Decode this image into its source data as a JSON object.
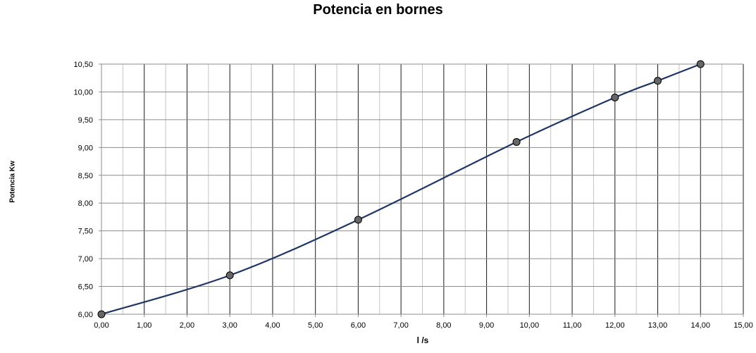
{
  "chart_data": {
    "type": "line",
    "title": "Potencia en bornes",
    "xlabel": "l /s",
    "ylabel": "Potencia Kw",
    "xlim": [
      0,
      15
    ],
    "ylim": [
      6,
      10.5
    ],
    "x_ticks": [
      "0,00",
      "1,00",
      "2,00",
      "3,00",
      "4,00",
      "5,00",
      "6,00",
      "7,00",
      "8,00",
      "9,00",
      "10,00",
      "11,00",
      "12,00",
      "13,00",
      "14,00",
      "15,00"
    ],
    "y_ticks": [
      "6,00",
      "6,50",
      "7,00",
      "7,50",
      "8,00",
      "8,50",
      "9,00",
      "9,50",
      "10,00",
      "10,50"
    ],
    "grid": true,
    "legend": "none",
    "series": [
      {
        "x": [
          0,
          3,
          6,
          9.7,
          12,
          13,
          14
        ],
        "y": [
          6.0,
          6.7,
          7.7,
          9.1,
          9.9,
          10.2,
          10.5
        ],
        "color": "#1f3566",
        "marker_color": "#666666",
        "smooth": true
      }
    ]
  }
}
